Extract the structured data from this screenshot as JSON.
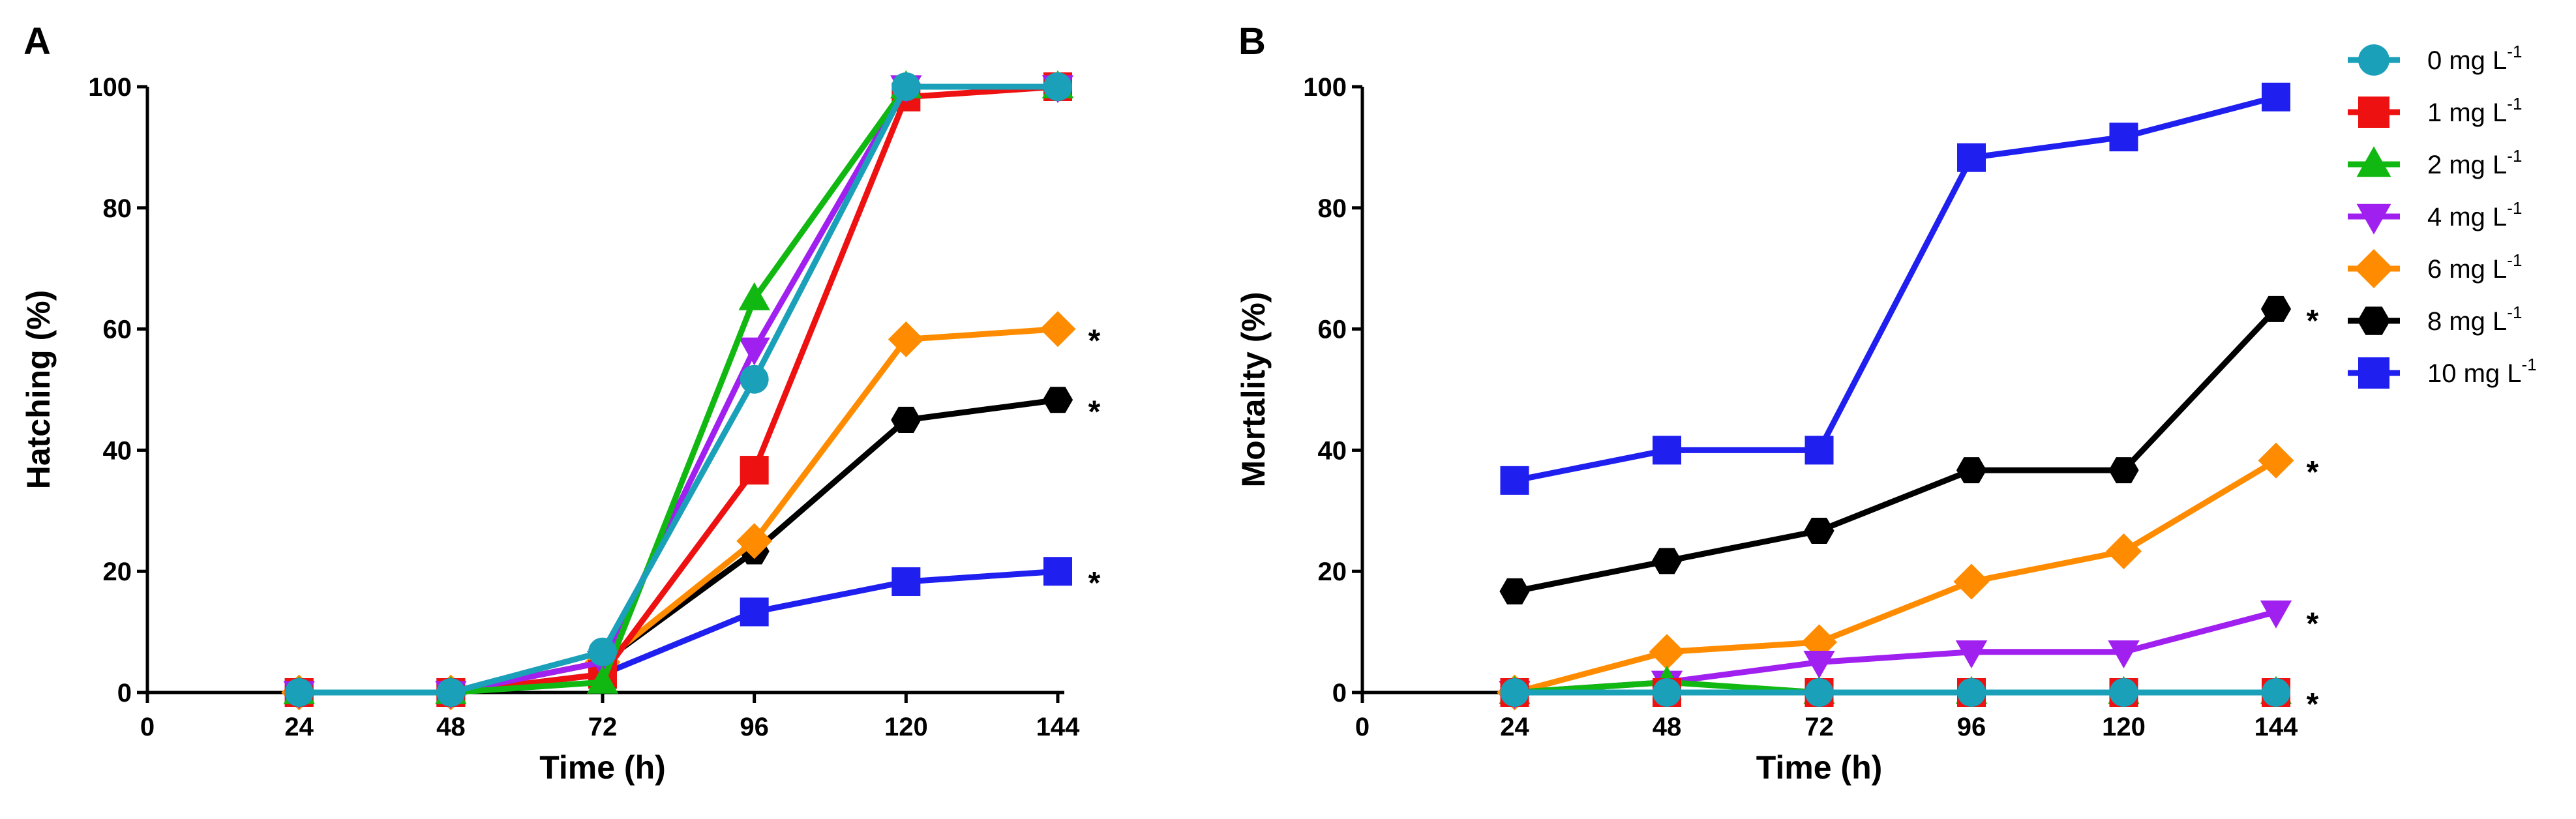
{
  "chart_data": [
    {
      "type": "line",
      "panel": "A",
      "title": "",
      "xlabel": "Time (h)",
      "ylabel": "Hatching (%)",
      "xlim": [
        0,
        144
      ],
      "ylim": [
        0,
        100
      ],
      "xticks": [
        0,
        24,
        48,
        72,
        96,
        120,
        144
      ],
      "yticks": [
        0,
        20,
        40,
        60,
        80,
        100
      ],
      "x": [
        24,
        48,
        72,
        96,
        120,
        144
      ],
      "grid": false,
      "series": [
        {
          "name": "10 mg L-1",
          "color": "#1f1ff0",
          "marker": "square",
          "values": [
            0,
            0,
            3,
            13.3,
            18.3,
            20
          ],
          "sig": true
        },
        {
          "name": "8 mg L-1",
          "color": "#000000",
          "marker": "hexagon",
          "values": [
            0,
            0,
            5,
            23.3,
            45,
            48.3
          ],
          "sig": true
        },
        {
          "name": "6 mg L-1",
          "color": "#ff8c00",
          "marker": "diamond",
          "values": [
            0,
            0,
            5,
            25,
            58.3,
            60
          ],
          "sig": true
        },
        {
          "name": "1 mg L-1",
          "color": "#ee1111",
          "marker": "square",
          "values": [
            0,
            0,
            3,
            36.7,
            98.3,
            100
          ],
          "sig": false
        },
        {
          "name": "4 mg L-1",
          "color": "#a020f0",
          "marker": "triangle-down",
          "values": [
            0,
            0,
            5,
            56.7,
            100,
            100
          ],
          "sig": false
        },
        {
          "name": "2 mg L-1",
          "color": "#11b811",
          "marker": "triangle-up",
          "values": [
            0,
            0,
            1.7,
            65,
            100,
            100
          ],
          "sig": false
        },
        {
          "name": "0 mg L-1",
          "color": "#1aa0b8",
          "marker": "circle",
          "values": [
            0,
            0,
            6.7,
            51.7,
            100,
            100
          ],
          "sig": false
        }
      ]
    },
    {
      "type": "line",
      "panel": "B",
      "title": "",
      "xlabel": "Time (h)",
      "ylabel": "Mortality (%)",
      "xlim": [
        0,
        144
      ],
      "ylim": [
        0,
        100
      ],
      "xticks": [
        0,
        24,
        48,
        72,
        96,
        120,
        144
      ],
      "yticks": [
        0,
        20,
        40,
        60,
        80,
        100
      ],
      "x": [
        24,
        48,
        72,
        96,
        120,
        144
      ],
      "grid": false,
      "series": [
        {
          "name": "10 mg L-1",
          "color": "#1f1ff0",
          "marker": "square",
          "values": [
            35,
            40,
            40,
            88.3,
            91.7,
            98.3
          ],
          "sig": false
        },
        {
          "name": "8 mg L-1",
          "color": "#000000",
          "marker": "hexagon",
          "values": [
            16.7,
            21.7,
            26.7,
            36.7,
            36.7,
            63.3
          ],
          "sig": true
        },
        {
          "name": "6 mg L-1",
          "color": "#ff8c00",
          "marker": "diamond",
          "values": [
            0,
            6.7,
            8.3,
            18.3,
            23.3,
            38.3
          ],
          "sig": true
        },
        {
          "name": "4 mg L-1",
          "color": "#a020f0",
          "marker": "triangle-down",
          "values": [
            0,
            1.7,
            5,
            6.7,
            6.7,
            13.3
          ],
          "sig": true
        },
        {
          "name": "2 mg L-1",
          "color": "#11b811",
          "marker": "triangle-up",
          "values": [
            0,
            1.7,
            0,
            0,
            0,
            0
          ],
          "sig": false
        },
        {
          "name": "1 mg L-1",
          "color": "#ee1111",
          "marker": "square",
          "values": [
            0,
            0,
            0,
            0,
            0,
            0
          ],
          "sig": false
        },
        {
          "name": "0 mg L-1",
          "color": "#1aa0b8",
          "marker": "circle",
          "values": [
            0,
            0,
            0,
            0,
            0,
            0
          ],
          "sig": true
        }
      ]
    }
  ],
  "significance_marker": "*",
  "legend": {
    "placement": "top-right",
    "entries": [
      {
        "label": "0 mg L",
        "sup": "-1",
        "color": "#1aa0b8",
        "marker": "circle"
      },
      {
        "label": "1 mg L",
        "sup": "-1",
        "color": "#ee1111",
        "marker": "square"
      },
      {
        "label": "2 mg L",
        "sup": "-1",
        "color": "#11b811",
        "marker": "triangle-up"
      },
      {
        "label": "4 mg L",
        "sup": "-1",
        "color": "#a020f0",
        "marker": "triangle-down"
      },
      {
        "label": "6 mg L",
        "sup": "-1",
        "color": "#ff8c00",
        "marker": "diamond"
      },
      {
        "label": "8 mg L",
        "sup": "-1",
        "color": "#000000",
        "marker": "hexagon"
      },
      {
        "label": "10 mg L",
        "sup": "-1",
        "color": "#1f1ff0",
        "marker": "square"
      }
    ]
  }
}
